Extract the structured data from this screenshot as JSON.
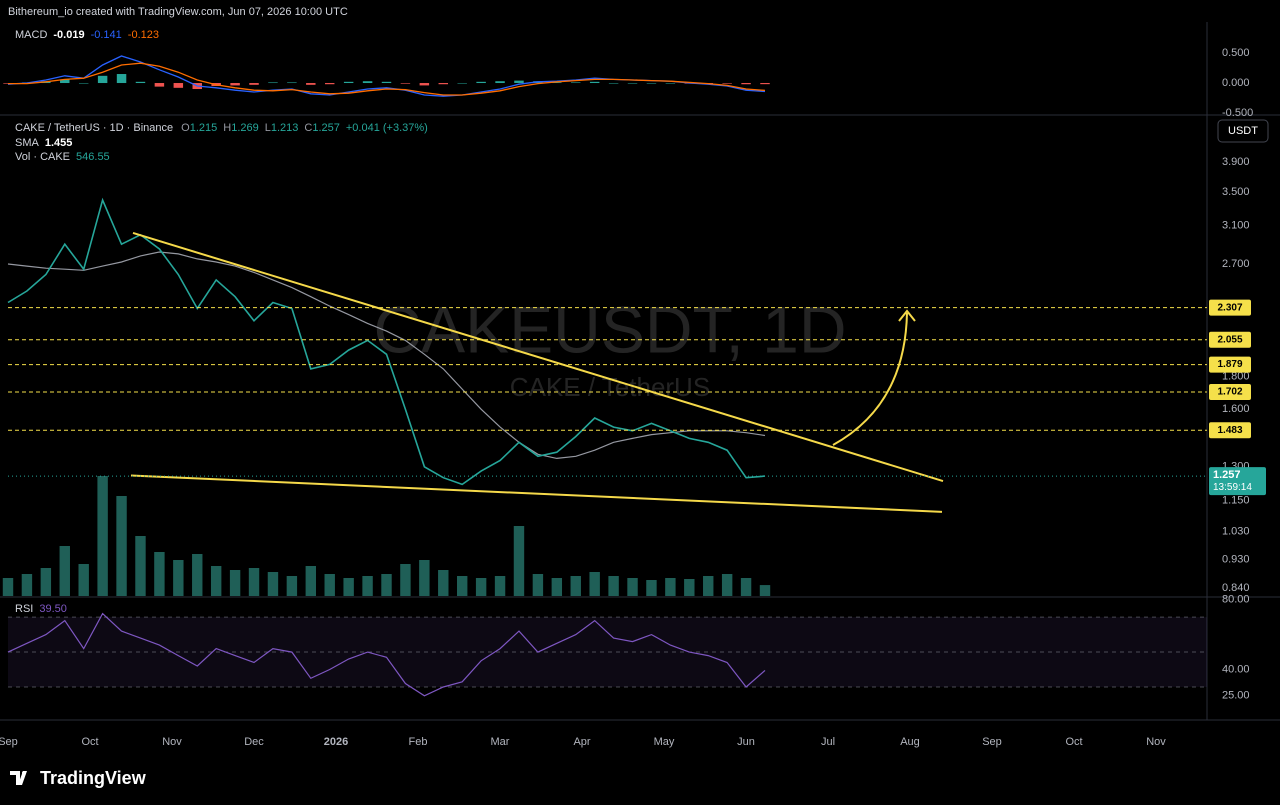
{
  "header": {
    "attribution": "Bithereum_io created with TradingView.com, Jun 07, 2026 10:00 UTC"
  },
  "footer": {
    "logo": "TradingView"
  },
  "x_axis": {
    "labels": [
      "Sep",
      "Oct",
      "Nov",
      "Dec",
      "2026",
      "Feb",
      "Mar",
      "Apr",
      "May",
      "Jun",
      "Jul",
      "Aug",
      "Sep",
      "Oct",
      "Nov"
    ]
  },
  "chart_data": [
    {
      "type": "macd",
      "title": "MACD",
      "ylim": [
        -0.533,
        0.967
      ],
      "yticks": [
        {
          "value": 0.5,
          "label": "0.500"
        },
        {
          "value": 0,
          "label": "0.000"
        },
        {
          "value": -0.5,
          "label": "-0.500"
        }
      ],
      "series": [
        {
          "color_up": "#26a69a",
          "color_down": "#ef5350",
          "values": [
            -0.01,
            0.01,
            0.03,
            0.06,
            0.0,
            0.12,
            0.15,
            0.02,
            -0.06,
            -0.08,
            -0.1,
            -0.05,
            -0.04,
            -0.03,
            0.01,
            0.01,
            -0.03,
            -0.02,
            0.02,
            0.03,
            0.02,
            -0.01,
            -0.04,
            -0.02,
            0.0,
            0.02,
            0.03,
            0.04,
            0.03,
            0.01,
            0.01,
            0.02,
            0.0,
            0.0,
            0.0,
            0.0,
            -0.01,
            -0.01,
            -0.01,
            -0.02,
            -0.019
          ]
        },
        {
          "color": "#2962ff",
          "values": [
            -0.02,
            0.0,
            0.05,
            0.12,
            0.08,
            0.3,
            0.45,
            0.35,
            0.22,
            0.1,
            -0.05,
            -0.08,
            -0.12,
            -0.15,
            -0.12,
            -0.1,
            -0.18,
            -0.2,
            -0.15,
            -0.1,
            -0.08,
            -0.12,
            -0.2,
            -0.22,
            -0.2,
            -0.15,
            -0.1,
            -0.02,
            0.02,
            0.03,
            0.05,
            0.08,
            0.06,
            0.05,
            0.04,
            0.03,
            0.0,
            -0.02,
            -0.05,
            -0.12,
            -0.141
          ]
        },
        {
          "color": "#ff6d00",
          "values": [
            -0.01,
            -0.01,
            0.02,
            0.06,
            0.08,
            0.18,
            0.3,
            0.33,
            0.28,
            0.18,
            0.05,
            -0.03,
            -0.08,
            -0.12,
            -0.13,
            -0.11,
            -0.15,
            -0.18,
            -0.17,
            -0.13,
            -0.1,
            -0.11,
            -0.16,
            -0.2,
            -0.2,
            -0.17,
            -0.13,
            -0.06,
            -0.01,
            0.02,
            0.04,
            0.06,
            0.06,
            0.05,
            0.04,
            0.03,
            0.01,
            -0.01,
            -0.04,
            -0.1,
            -0.123
          ]
        }
      ]
    },
    {
      "type": "line",
      "title": "CAKE / TetherUS · 1D · Binance",
      "fields": [
        {
          "label": "O",
          "value": 1.215
        },
        {
          "label": "H",
          "value": 1.269
        },
        {
          "label": "L",
          "value": 1.213
        },
        {
          "label": "C",
          "value": 1.257
        }
      ],
      "change": "+0.041 (+3.37%)",
      "currency": "USDT",
      "watermark": [
        "CAKEUSDT, 1D",
        "CAKE / TetherUS"
      ],
      "countdown": "13:59:14",
      "log_scale": true,
      "ylim": [
        0.816,
        4.62
      ],
      "yticks": [
        {
          "value": 3.9,
          "label": "3.900"
        },
        {
          "value": 3.5,
          "label": "3.500"
        },
        {
          "value": 3.1,
          "label": "3.100"
        },
        {
          "value": 2.7,
          "label": "2.700"
        },
        {
          "value": 1.8,
          "label": "1.800"
        },
        {
          "value": 1.6,
          "label": "1.600"
        },
        {
          "value": 1.3,
          "label": "1.300"
        },
        {
          "value": 1.15,
          "label": "1.150"
        },
        {
          "value": 1.03,
          "label": "1.030"
        },
        {
          "value": 0.93,
          "label": "0.930"
        },
        {
          "value": 0.84,
          "label": "0.840"
        }
      ],
      "price": {
        "color": "#26a69a",
        "values": [
          2.35,
          2.45,
          2.6,
          2.9,
          2.65,
          3.4,
          2.9,
          3.0,
          2.85,
          2.6,
          2.3,
          2.55,
          2.4,
          2.2,
          2.35,
          2.3,
          1.85,
          1.88,
          1.98,
          2.05,
          1.95,
          1.6,
          1.3,
          1.25,
          1.22,
          1.28,
          1.33,
          1.42,
          1.35,
          1.37,
          1.45,
          1.55,
          1.5,
          1.48,
          1.52,
          1.48,
          1.44,
          1.42,
          1.38,
          1.25,
          1.257
        ]
      },
      "sma": {
        "name": "SMA",
        "color": "#9598a1",
        "values": [
          2.7,
          2.68,
          2.66,
          2.65,
          2.64,
          2.68,
          2.72,
          2.78,
          2.82,
          2.8,
          2.75,
          2.72,
          2.68,
          2.62,
          2.55,
          2.48,
          2.4,
          2.32,
          2.25,
          2.18,
          2.12,
          2.05,
          1.95,
          1.85,
          1.72,
          1.6,
          1.5,
          1.42,
          1.36,
          1.34,
          1.35,
          1.38,
          1.42,
          1.44,
          1.46,
          1.47,
          1.48,
          1.48,
          1.48,
          1.47,
          1.455
        ]
      },
      "volume": {
        "name": "Vol · CAKE",
        "color": "#1f5f57",
        "ylim": [
          0,
          6500
        ],
        "values": [
          900,
          1100,
          1400,
          2500,
          1600,
          6000,
          5000,
          3000,
          2200,
          1800,
          2100,
          1500,
          1300,
          1400,
          1200,
          1000,
          1500,
          1100,
          900,
          1000,
          1100,
          1600,
          1800,
          1300,
          1000,
          900,
          1000,
          3500,
          1100,
          900,
          1000,
          1200,
          1000,
          900,
          800,
          900,
          850,
          1000,
          1100,
          900,
          546.55
        ]
      },
      "levels": [
        2.307,
        2.055,
        1.879,
        1.702,
        1.483
      ],
      "level_color": "#f5e04a",
      "trendlines": [
        {
          "values": [
            3.02,
            1.235
          ]
        },
        {
          "values": [
            1.26,
            1.105
          ]
        }
      ],
      "trend_color": "#f5d94a"
    },
    {
      "type": "rsi",
      "title": "RSI",
      "color": "#7e57c2",
      "last_label": "39.50",
      "ylim": [
        12.3,
        80.9
      ],
      "yticks": [
        {
          "value": 80,
          "label": "80.00"
        },
        {
          "value": 40,
          "label": "40.00"
        },
        {
          "value": 25,
          "label": "25.00"
        }
      ],
      "bands": [
        30,
        50,
        70
      ],
      "values": [
        50,
        55,
        60,
        68,
        52,
        72,
        62,
        58,
        54,
        48,
        42,
        52,
        48,
        44,
        52,
        50,
        35,
        40,
        46,
        50,
        47,
        32,
        25,
        30,
        33,
        45,
        52,
        62,
        50,
        55,
        60,
        68,
        58,
        56,
        60,
        54,
        50,
        48,
        44,
        30,
        39.5
      ]
    }
  ]
}
